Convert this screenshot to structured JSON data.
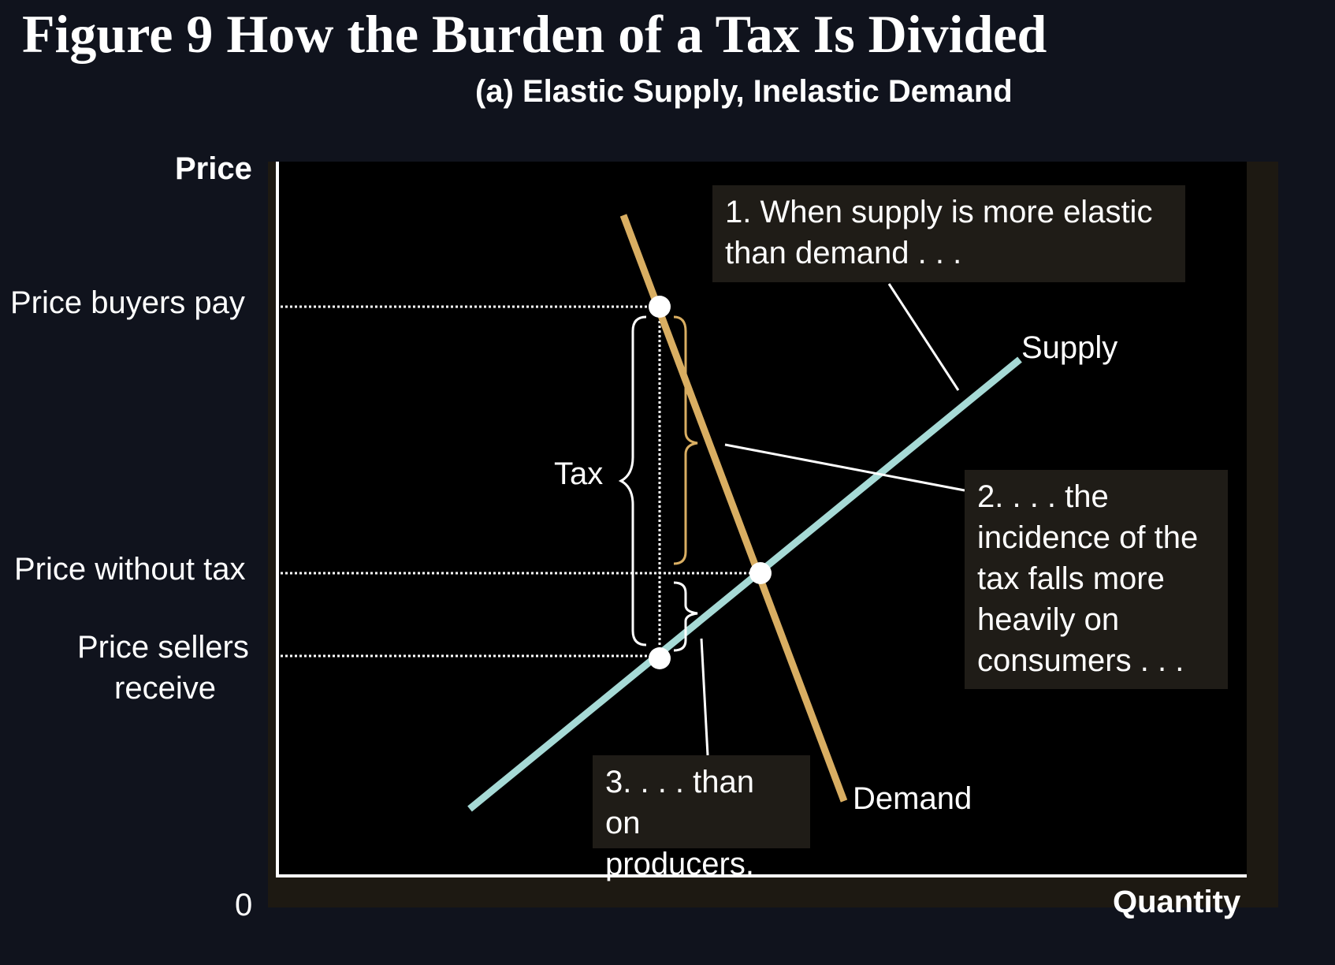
{
  "title": "Figure 9 How the Burden of a Tax Is Divided",
  "subtitle": "(a) Elastic Supply, Inelastic Demand",
  "axes": {
    "y_label": "Price",
    "x_label": "Quantity",
    "origin": "0"
  },
  "price_labels": {
    "buyers_pay": "Price buyers pay",
    "without_tax": "Price without tax",
    "sellers_receive_line1": "Price sellers",
    "sellers_receive_line2": "receive"
  },
  "curves": {
    "supply": "Supply",
    "demand": "Demand"
  },
  "tax_label": "Tax",
  "callouts": {
    "c1_line1": "1. When supply is more elastic",
    "c1_line2": "than demand . . .",
    "c2_line1": "2. . . . the",
    "c2_line2": "incidence of the",
    "c2_line3": "tax falls more",
    "c2_line4": "heavily on",
    "c2_line5": "consumers . . .",
    "c3_line1": "3. . . . than",
    "c3_line2": "on producers."
  },
  "colors": {
    "supply": "#a6dad6",
    "demand": "#d9ae62",
    "background": "#10131d",
    "plot": "#000000",
    "callout": "#1f1c17"
  }
}
